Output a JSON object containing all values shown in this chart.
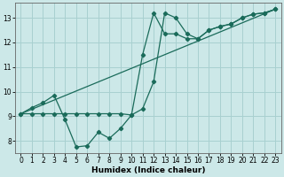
{
  "xlabel": "Humidex (Indice chaleur)",
  "bg_color": "#cce8e8",
  "grid_color": "#a8d0d0",
  "line_color": "#1a6b5a",
  "xlim": [
    -0.5,
    23.5
  ],
  "ylim": [
    7.5,
    13.6
  ],
  "xticks": [
    0,
    1,
    2,
    3,
    4,
    5,
    6,
    7,
    8,
    9,
    10,
    11,
    12,
    13,
    14,
    15,
    16,
    17,
    18,
    19,
    20,
    21,
    22,
    23
  ],
  "yticks": [
    8,
    9,
    10,
    11,
    12,
    13
  ],
  "series1_x": [
    0,
    1,
    2,
    3,
    4,
    5,
    6,
    7,
    8,
    9,
    10,
    11,
    12,
    13,
    14,
    15,
    16,
    17,
    18,
    19,
    20,
    21,
    22,
    23
  ],
  "series1_y": [
    9.1,
    9.35,
    9.55,
    9.85,
    8.85,
    7.75,
    7.8,
    8.35,
    8.1,
    8.5,
    9.05,
    9.3,
    10.4,
    13.2,
    13.0,
    12.35,
    12.15,
    12.5,
    12.65,
    12.75,
    13.0,
    13.15,
    13.2,
    13.35
  ],
  "series2_x": [
    0,
    1,
    2,
    3,
    4,
    5,
    6,
    7,
    8,
    9,
    10,
    11,
    12,
    13,
    14,
    15,
    16,
    17,
    18,
    19,
    20,
    21,
    22,
    23
  ],
  "series2_y": [
    9.1,
    9.1,
    9.1,
    9.1,
    9.1,
    9.1,
    9.1,
    9.1,
    9.1,
    9.1,
    9.05,
    11.5,
    13.2,
    12.35,
    12.35,
    12.15,
    12.15,
    12.5,
    12.65,
    12.75,
    13.0,
    13.15,
    13.2,
    13.35
  ],
  "series3_x": [
    0,
    23
  ],
  "series3_y": [
    9.1,
    13.35
  ],
  "lw": 0.9,
  "ms": 2.2
}
